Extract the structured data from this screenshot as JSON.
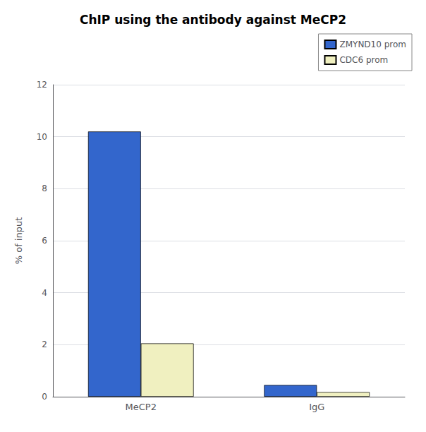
{
  "chart_data": {
    "type": "bar",
    "title": "ChIP using the antibody against MeCP2",
    "ylabel": "% of input",
    "categories": [
      "MeCP2",
      "IgG"
    ],
    "series": [
      {
        "name": "ZMYND10 prom",
        "color": "#3366cc",
        "values": [
          10.2,
          0.45
        ]
      },
      {
        "name": "CDC6 prom",
        "color": "#f0f0c0",
        "values": [
          2.05,
          0.18
        ]
      }
    ],
    "ylim": [
      0,
      12
    ],
    "yticks": [
      0,
      2,
      4,
      6,
      8,
      10,
      12
    ],
    "grid": true,
    "legend": "upper right"
  }
}
